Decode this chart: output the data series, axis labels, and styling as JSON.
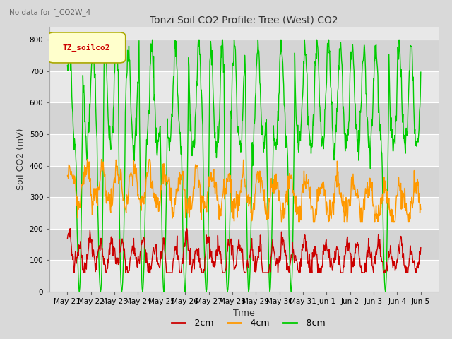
{
  "title": "Tonzi Soil CO2 Profile: Tree (West) CO2",
  "subtitle": "No data for f_CO2W_4",
  "xlabel": "Time",
  "ylabel": "Soil CO2 (mV)",
  "ylim": [
    0,
    840
  ],
  "yticks": [
    0,
    100,
    200,
    300,
    400,
    500,
    600,
    700,
    800
  ],
  "legend_label": "TZ_soilco2",
  "series_labels": [
    "-2cm",
    "-4cm",
    "-8cm"
  ],
  "series_colors": [
    "#cc0000",
    "#ff9900",
    "#00cc00"
  ],
  "bg_color": "#d9d9d9",
  "plot_bg_color": "#e8e8e8",
  "band_color_light": "#e8e8e8",
  "band_color_dark": "#d4d4d4",
  "x_tick_labels": [
    "May 21",
    "May 22",
    "May 23",
    "May 24",
    "May 25",
    "May 26",
    "May 27",
    "May 28",
    "May 29",
    "May 30",
    "May 31",
    "Jun 1",
    "Jun 2",
    "Jun 3",
    "Jun 4",
    "Jun 5"
  ],
  "n_points": 800,
  "n_days": 15
}
